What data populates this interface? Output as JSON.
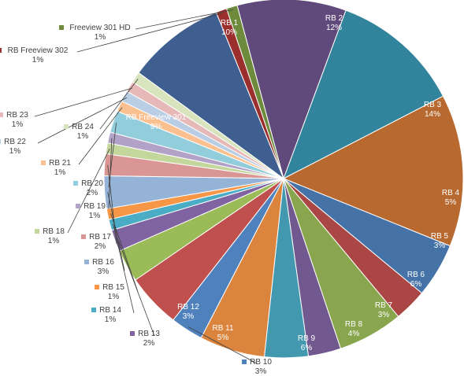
{
  "chart_data": {
    "type": "pie",
    "title": "",
    "legend": "none",
    "slices": [
      {
        "label": "RB 1",
        "value": 10,
        "value_label": "10%",
        "color": "#604A7B"
      },
      {
        "label": "RB 2",
        "value": 12,
        "value_label": "12%",
        "color": "#31849B"
      },
      {
        "label": "RB 3",
        "value": 14,
        "value_label": "14%",
        "color": "#B7692F"
      },
      {
        "label": "RB 4",
        "value": 5,
        "value_label": "5%",
        "color": "#4572A7"
      },
      {
        "label": "RB 5",
        "value": 3,
        "value_label": "3%",
        "color": "#AA4643"
      },
      {
        "label": "RB 6",
        "value": 6,
        "value_label": "6%",
        "color": "#89A54E"
      },
      {
        "label": "RB 7",
        "value": 3,
        "value_label": "3%",
        "color": "#71588F"
      },
      {
        "label": "RB 8",
        "value": 4,
        "value_label": "4%",
        "color": "#4198AF"
      },
      {
        "label": "RB 9",
        "value": 6,
        "value_label": "6%",
        "color": "#DB843D"
      },
      {
        "label": "RB 10",
        "value": 3,
        "value_label": "3%",
        "color": "#4F81BD"
      },
      {
        "label": "RB 11",
        "value": 5,
        "value_label": "5%",
        "color": "#C0504D"
      },
      {
        "label": "RB 12",
        "value": 3,
        "value_label": "3%",
        "color": "#9BBB59"
      },
      {
        "label": "RB 13",
        "value": 2,
        "value_label": "2%",
        "color": "#8064A2"
      },
      {
        "label": "RB 14",
        "value": 1,
        "value_label": "1%",
        "color": "#4BACC6"
      },
      {
        "label": "RB 15",
        "value": 1,
        "value_label": "1%",
        "color": "#F79646"
      },
      {
        "label": "RB 16",
        "value": 3,
        "value_label": "3%",
        "color": "#95B3D7"
      },
      {
        "label": "RB 17",
        "value": 2,
        "value_label": "2%",
        "color": "#D99694"
      },
      {
        "label": "RB 18",
        "value": 1,
        "value_label": "1%",
        "color": "#C3D69B"
      },
      {
        "label": "RB 19",
        "value": 1,
        "value_label": "1%",
        "color": "#B2A2C7"
      },
      {
        "label": "RB 20",
        "value": 2,
        "value_label": "2%",
        "color": "#92CDDC"
      },
      {
        "label": "RB 21",
        "value": 1,
        "value_label": "1%",
        "color": "#FAC090"
      },
      {
        "label": "RB 22",
        "value": 1,
        "value_label": "1%",
        "color": "#B9CDE5"
      },
      {
        "label": "RB 23",
        "value": 1,
        "value_label": "1%",
        "color": "#E6B9B8"
      },
      {
        "label": "RB 24",
        "value": 1,
        "value_label": "1%",
        "color": "#D7E4BD"
      },
      {
        "label": "RB Freeview 301",
        "value": 9,
        "value_label": "9%",
        "color": "#3E5F8F"
      },
      {
        "label": "RB Freeview 302",
        "value": 1,
        "value_label": "1%",
        "color": "#9A2F2D"
      },
      {
        "label": "Freeview 301 HD",
        "value": 1,
        "value_label": "1%",
        "color": "#6E8B3D"
      }
    ]
  }
}
